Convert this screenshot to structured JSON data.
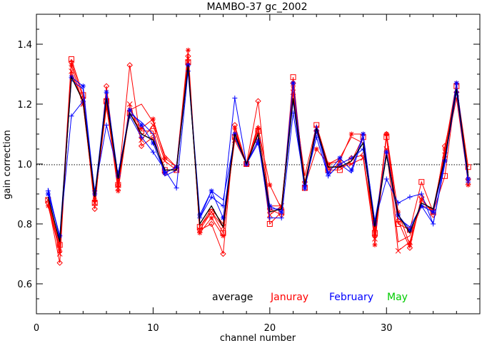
{
  "chart_data": {
    "type": "line",
    "title": "MAMBO-37 gc_2002",
    "xlabel": "channel number",
    "ylabel": "gain correction",
    "xlim": [
      0,
      38
    ],
    "ylim": [
      0.5,
      1.5
    ],
    "xticks": [
      0,
      10,
      20,
      30
    ],
    "xtick_labels": [
      "0",
      "10",
      "20",
      "30"
    ],
    "yticks": [
      0.6,
      0.8,
      1.0,
      1.2,
      1.4
    ],
    "ytick_labels": [
      "0.6",
      "0.8",
      "1.0",
      "1.2",
      "1.4"
    ],
    "reference_line": 1.0,
    "grid": false,
    "legend": {
      "placement": "bottom-right",
      "entries": [
        {
          "label": "average",
          "color": "#000000"
        },
        {
          "label": "Januray",
          "color": "#ff0000"
        },
        {
          "label": "February",
          "color": "#0000ff"
        },
        {
          "label": "May",
          "color": "#00cc00"
        }
      ]
    },
    "x": [
      1,
      2,
      3,
      4,
      5,
      6,
      7,
      8,
      9,
      10,
      11,
      12,
      13,
      14,
      15,
      16,
      17,
      18,
      19,
      20,
      21,
      22,
      23,
      24,
      25,
      26,
      27,
      28,
      29,
      30,
      31,
      32,
      33,
      34,
      35,
      36,
      37
    ],
    "series": [
      {
        "name": "average",
        "color": "#000000",
        "marker": "none",
        "values": [
          0.89,
          0.74,
          1.29,
          1.21,
          0.89,
          1.22,
          0.95,
          1.17,
          1.1,
          1.08,
          0.98,
          0.98,
          1.33,
          0.8,
          0.86,
          0.79,
          1.1,
          1.0,
          1.1,
          0.84,
          0.85,
          1.22,
          0.93,
          1.12,
          0.99,
          0.99,
          1.01,
          1.07,
          0.79,
          1.03,
          0.83,
          0.77,
          0.87,
          0.85,
          1.02,
          1.25,
          0.96
        ]
      },
      {
        "color": "#ff0000",
        "marker": "square",
        "values": [
          0.88,
          0.73,
          1.35,
          1.23,
          0.87,
          1.21,
          0.93,
          1.17,
          1.11,
          1.11,
          0.98,
          0.98,
          1.34,
          0.79,
          0.84,
          0.77,
          1.09,
          1.0,
          1.11,
          0.8,
          0.84,
          1.29,
          0.92,
          1.13,
          0.98,
          0.98,
          1.01,
          1.09,
          0.77,
          1.09,
          0.8,
          0.78,
          0.94,
          0.84,
          0.96,
          1.26,
          0.99
        ]
      },
      {
        "color": "#ff0000",
        "marker": "diamond",
        "values": [
          0.87,
          0.67,
          1.34,
          1.22,
          0.85,
          1.26,
          0.93,
          1.33,
          1.06,
          1.09,
          0.97,
          0.99,
          1.36,
          0.78,
          0.8,
          0.7,
          1.13,
          1.0,
          1.21,
          0.85,
          0.83,
          1.27,
          0.94,
          1.11,
          0.98,
          1.0,
          1.02,
          1.03,
          0.76,
          1.1,
          0.81,
          0.72,
          0.89,
          0.83,
          1.06,
          1.24,
          0.95
        ]
      },
      {
        "color": "#ff0000",
        "marker": "asterisk",
        "values": [
          0.86,
          0.71,
          1.33,
          1.2,
          0.88,
          1.2,
          0.91,
          1.18,
          1.12,
          1.15,
          1.02,
          0.99,
          1.38,
          0.77,
          0.82,
          0.76,
          1.12,
          1.0,
          1.12,
          0.93,
          0.85,
          1.26,
          0.93,
          1.05,
          1.0,
          1.01,
          1.1,
          1.1,
          0.73,
          1.1,
          0.84,
          0.73,
          0.88,
          0.84,
          1.05,
          1.27,
          0.93
        ]
      },
      {
        "color": "#ff0000",
        "marker": "cross",
        "values": [
          0.88,
          0.7,
          1.31,
          1.2,
          0.87,
          1.21,
          0.92,
          1.2,
          1.08,
          1.13,
          1.01,
          0.98,
          1.34,
          0.78,
          0.84,
          0.79,
          1.08,
          1.0,
          1.08,
          0.83,
          0.86,
          1.24,
          0.92,
          1.12,
          0.99,
          0.99,
          1.0,
          1.02,
          0.75,
          1.05,
          0.71,
          0.74,
          0.88,
          0.84,
          1.03,
          1.22,
          0.94
        ]
      },
      {
        "color": "#ff0000",
        "marker": "none",
        "values": [
          0.87,
          0.72,
          1.3,
          1.21,
          0.88,
          1.19,
          0.94,
          1.18,
          1.2,
          1.14,
          1.03,
          0.99,
          1.33,
          0.79,
          0.85,
          0.8,
          1.11,
          1.0,
          1.13,
          0.86,
          0.86,
          1.24,
          0.96,
          1.13,
          1.0,
          1.02,
          1.09,
          1.07,
          0.78,
          1.09,
          0.74,
          0.76,
          0.86,
          0.85,
          1.04,
          1.26,
          0.97
        ]
      },
      {
        "color": "#0000ff",
        "marker": "plus",
        "values": [
          0.91,
          0.76,
          1.16,
          1.21,
          0.91,
          1.13,
          0.97,
          1.16,
          1.09,
          1.04,
          0.98,
          0.92,
          1.31,
          0.82,
          0.89,
          0.86,
          1.22,
          1.0,
          1.08,
          0.82,
          0.82,
          1.17,
          0.93,
          1.09,
          0.96,
          1.0,
          1.02,
          1.05,
          0.81,
          0.95,
          0.87,
          0.89,
          0.9,
          0.8,
          1.01,
          1.24,
          0.94
        ]
      },
      {
        "color": "#0000ff",
        "marker": "asterisk",
        "values": [
          0.9,
          0.76,
          1.29,
          1.26,
          0.9,
          1.24,
          0.96,
          1.18,
          1.13,
          1.07,
          0.97,
          0.99,
          1.33,
          0.83,
          0.91,
          0.82,
          1.1,
          1.0,
          1.07,
          0.86,
          0.84,
          1.27,
          0.92,
          1.11,
          0.97,
          1.02,
          0.98,
          1.1,
          0.8,
          1.04,
          0.83,
          0.78,
          0.86,
          0.84,
          1.01,
          1.27,
          0.95
        ]
      },
      {
        "color": "#0000ff",
        "marker": "none",
        "values": [
          0.92,
          0.75,
          1.28,
          1.25,
          0.89,
          1.23,
          0.95,
          1.17,
          1.14,
          1.1,
          0.96,
          0.98,
          1.32,
          0.82,
          0.91,
          0.88,
          1.09,
          1.0,
          1.1,
          0.85,
          0.85,
          1.21,
          0.91,
          1.13,
          0.96,
          1.0,
          0.97,
          1.09,
          0.81,
          1.03,
          0.82,
          0.79,
          0.86,
          0.8,
          1.0,
          1.27,
          0.94
        ]
      }
    ]
  }
}
